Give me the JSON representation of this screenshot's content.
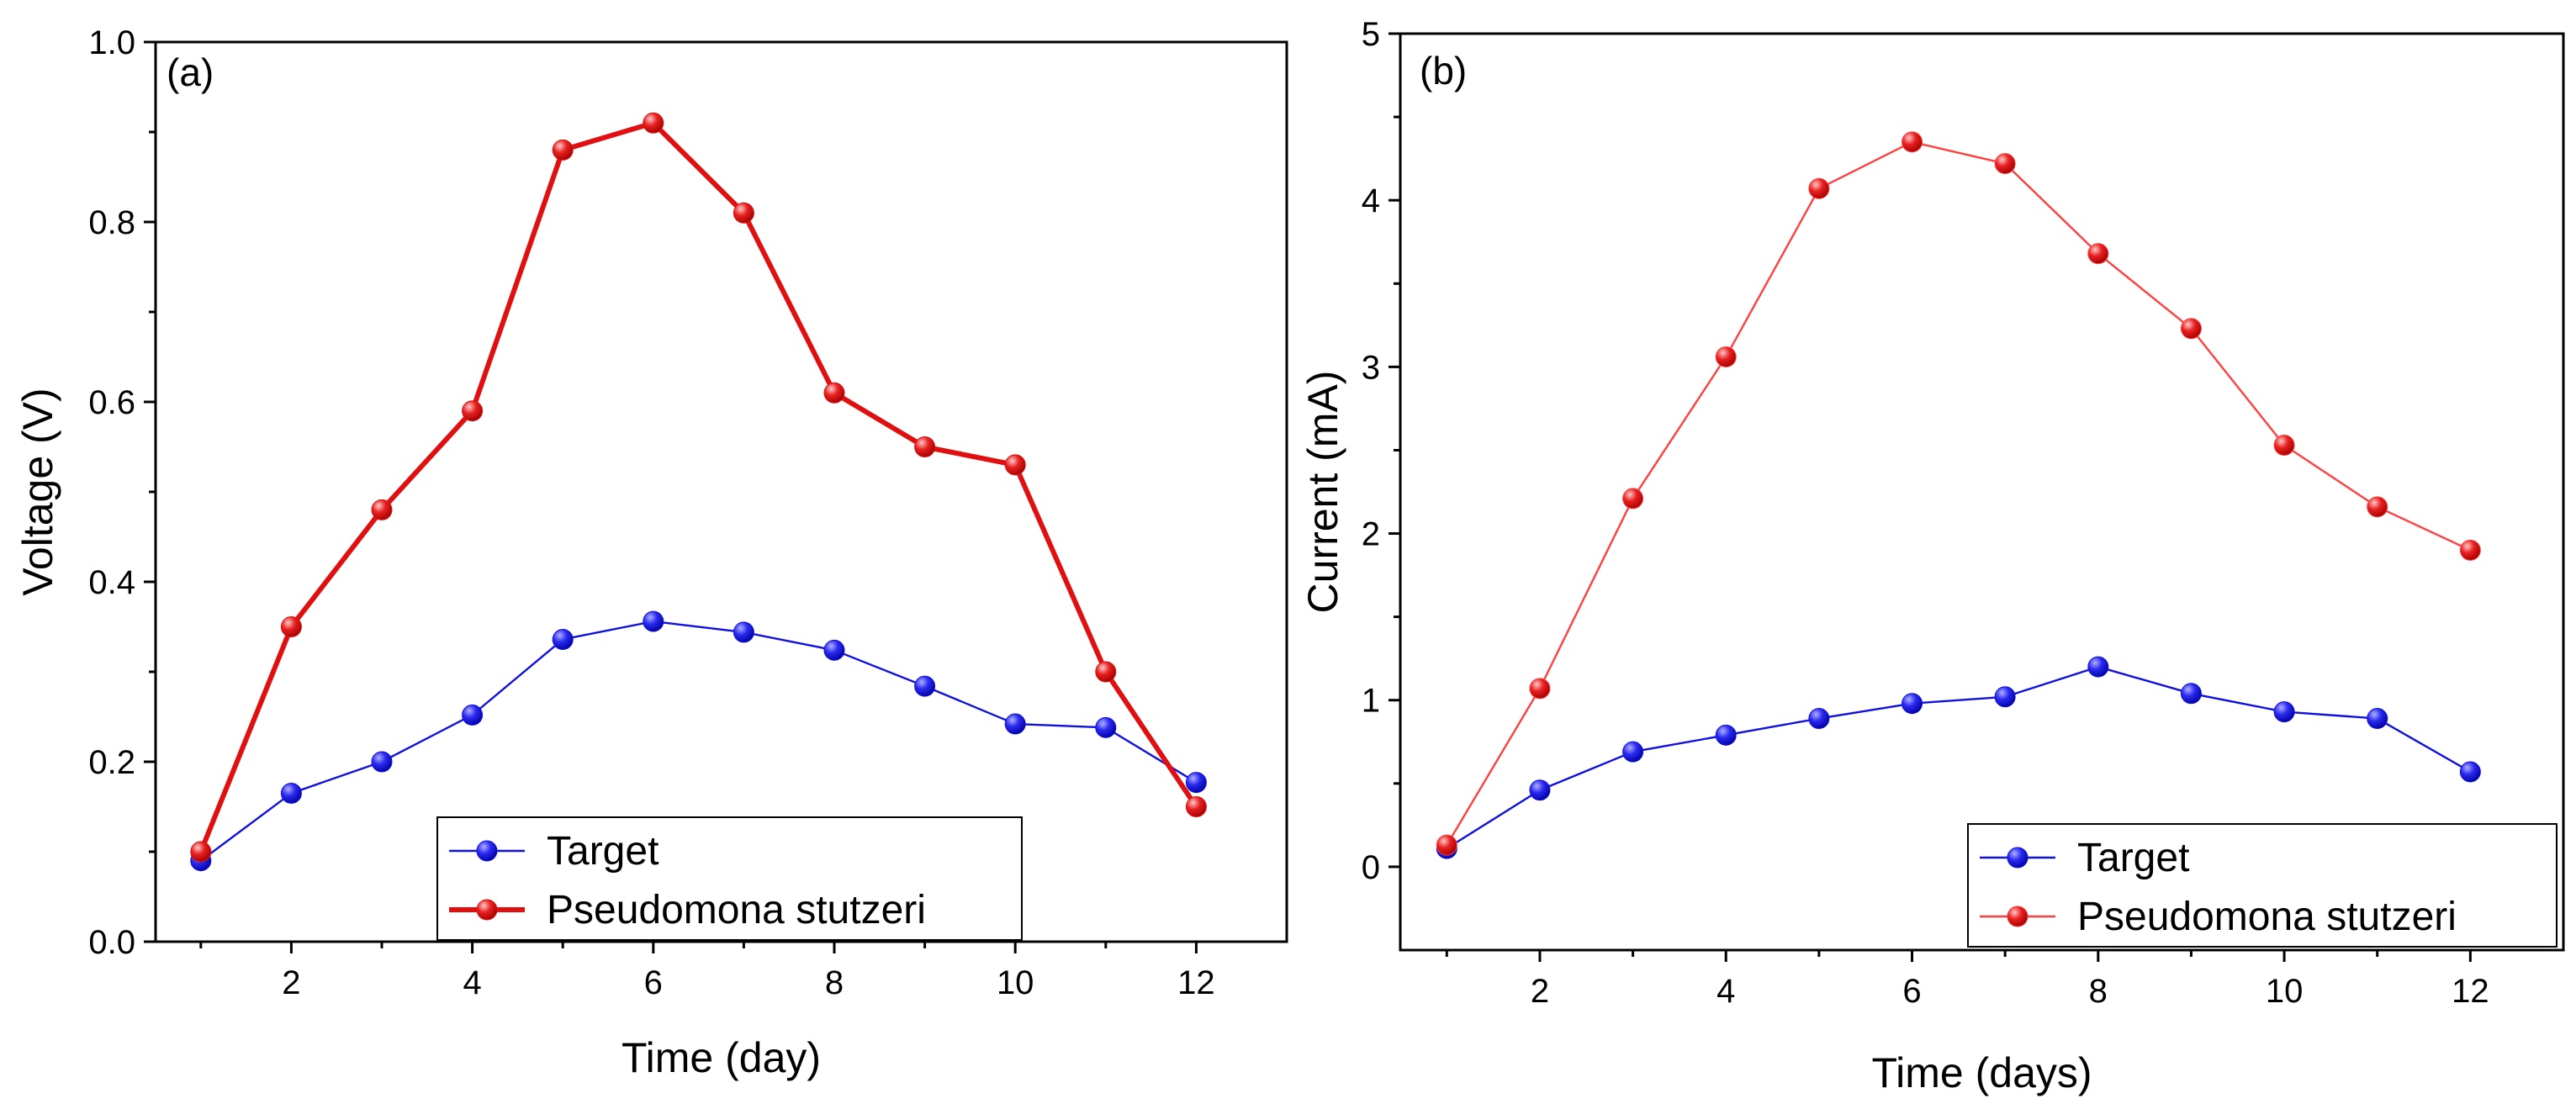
{
  "chart_data": [
    {
      "type": "line",
      "panel_label": "(a)",
      "title": "",
      "xlabel": "Time (day)",
      "ylabel": "Voltage (V)",
      "xlim": [
        0.5,
        13
      ],
      "ylim": [
        0,
        1
      ],
      "xticks": [
        2,
        4,
        6,
        8,
        10,
        12
      ],
      "xtick_labels": [
        "2",
        "4",
        "6",
        "8",
        "10",
        "12"
      ],
      "yticks": [
        0,
        0.2,
        0.4,
        0.6,
        0.8,
        1.0
      ],
      "ytick_labels": [
        "0.0",
        "0.2",
        "0.4",
        "0.6",
        "0.8",
        "1.0"
      ],
      "grid": false,
      "legend_position": "bottom-center",
      "x": [
        1,
        2,
        3,
        4,
        5,
        6,
        7,
        8,
        9,
        10,
        11,
        12
      ],
      "series": [
        {
          "name": "Target",
          "color": "#1010e0",
          "line_width": 1.2,
          "values": [
            0.09,
            0.165,
            0.2,
            0.252,
            0.336,
            0.356,
            0.344,
            0.324,
            0.284,
            0.242,
            0.238,
            0.177
          ]
        },
        {
          "name": "Pseudomona stutzeri",
          "color": "#e01010",
          "line_width": 3,
          "values": [
            0.1,
            0.35,
            0.48,
            0.59,
            0.88,
            0.91,
            0.81,
            0.61,
            0.55,
            0.53,
            0.3,
            0.15
          ]
        }
      ]
    },
    {
      "type": "line",
      "panel_label": "(b)",
      "title": "",
      "xlabel": "Time (days)",
      "ylabel": "Current (mA)",
      "xlim": [
        0.5,
        13
      ],
      "ylim": [
        -0.5,
        5
      ],
      "xticks": [
        2,
        4,
        6,
        8,
        10,
        12
      ],
      "xtick_labels": [
        "2",
        "4",
        "6",
        "8",
        "10",
        "12"
      ],
      "yticks": [
        0,
        1,
        2,
        3,
        4,
        5
      ],
      "ytick_labels": [
        "0",
        "1",
        "2",
        "3",
        "4",
        "5"
      ],
      "grid": false,
      "legend_position": "bottom-right",
      "x": [
        1,
        2,
        3,
        4,
        5,
        6,
        7,
        8,
        9,
        10,
        11,
        12
      ],
      "series": [
        {
          "name": "Target",
          "color": "#1010e0",
          "line_width": 1.2,
          "values": [
            0.11,
            0.46,
            0.69,
            0.79,
            0.89,
            0.98,
            1.02,
            1.2,
            1.04,
            0.93,
            0.89,
            0.57
          ]
        },
        {
          "name": "Pseudomona stutzeri",
          "color": "#ff4040",
          "line_width": 1.2,
          "values": [
            0.13,
            1.07,
            2.21,
            3.06,
            4.07,
            4.35,
            4.22,
            3.68,
            3.23,
            2.53,
            2.16,
            1.9
          ]
        }
      ]
    }
  ]
}
